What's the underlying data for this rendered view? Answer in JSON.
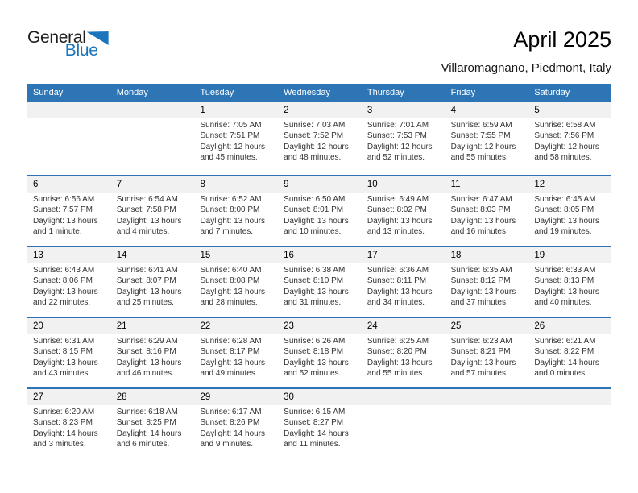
{
  "logo": {
    "part1": "General",
    "part2": "Blue"
  },
  "header": {
    "title": "April 2025",
    "subtitle": "Villaromagnano, Piedmont, Italy"
  },
  "colors": {
    "header_bg": "#2e75b6",
    "week_line": "#2e74b5",
    "band_bg": "#f1f1f1",
    "logo_blue": "#1b75bc"
  },
  "day_headers": [
    "Sunday",
    "Monday",
    "Tuesday",
    "Wednesday",
    "Thursday",
    "Friday",
    "Saturday"
  ],
  "weeks": [
    [
      {
        "day": "",
        "lines": []
      },
      {
        "day": "",
        "lines": []
      },
      {
        "day": "1",
        "lines": [
          "Sunrise: 7:05 AM",
          "Sunset: 7:51 PM",
          "Daylight: 12 hours and 45 minutes."
        ]
      },
      {
        "day": "2",
        "lines": [
          "Sunrise: 7:03 AM",
          "Sunset: 7:52 PM",
          "Daylight: 12 hours and 48 minutes."
        ]
      },
      {
        "day": "3",
        "lines": [
          "Sunrise: 7:01 AM",
          "Sunset: 7:53 PM",
          "Daylight: 12 hours and 52 minutes."
        ]
      },
      {
        "day": "4",
        "lines": [
          "Sunrise: 6:59 AM",
          "Sunset: 7:55 PM",
          "Daylight: 12 hours and 55 minutes."
        ]
      },
      {
        "day": "5",
        "lines": [
          "Sunrise: 6:58 AM",
          "Sunset: 7:56 PM",
          "Daylight: 12 hours and 58 minutes."
        ]
      }
    ],
    [
      {
        "day": "6",
        "lines": [
          "Sunrise: 6:56 AM",
          "Sunset: 7:57 PM",
          "Daylight: 13 hours and 1 minute."
        ]
      },
      {
        "day": "7",
        "lines": [
          "Sunrise: 6:54 AM",
          "Sunset: 7:58 PM",
          "Daylight: 13 hours and 4 minutes."
        ]
      },
      {
        "day": "8",
        "lines": [
          "Sunrise: 6:52 AM",
          "Sunset: 8:00 PM",
          "Daylight: 13 hours and 7 minutes."
        ]
      },
      {
        "day": "9",
        "lines": [
          "Sunrise: 6:50 AM",
          "Sunset: 8:01 PM",
          "Daylight: 13 hours and 10 minutes."
        ]
      },
      {
        "day": "10",
        "lines": [
          "Sunrise: 6:49 AM",
          "Sunset: 8:02 PM",
          "Daylight: 13 hours and 13 minutes."
        ]
      },
      {
        "day": "11",
        "lines": [
          "Sunrise: 6:47 AM",
          "Sunset: 8:03 PM",
          "Daylight: 13 hours and 16 minutes."
        ]
      },
      {
        "day": "12",
        "lines": [
          "Sunrise: 6:45 AM",
          "Sunset: 8:05 PM",
          "Daylight: 13 hours and 19 minutes."
        ]
      }
    ],
    [
      {
        "day": "13",
        "lines": [
          "Sunrise: 6:43 AM",
          "Sunset: 8:06 PM",
          "Daylight: 13 hours and 22 minutes."
        ]
      },
      {
        "day": "14",
        "lines": [
          "Sunrise: 6:41 AM",
          "Sunset: 8:07 PM",
          "Daylight: 13 hours and 25 minutes."
        ]
      },
      {
        "day": "15",
        "lines": [
          "Sunrise: 6:40 AM",
          "Sunset: 8:08 PM",
          "Daylight: 13 hours and 28 minutes."
        ]
      },
      {
        "day": "16",
        "lines": [
          "Sunrise: 6:38 AM",
          "Sunset: 8:10 PM",
          "Daylight: 13 hours and 31 minutes."
        ]
      },
      {
        "day": "17",
        "lines": [
          "Sunrise: 6:36 AM",
          "Sunset: 8:11 PM",
          "Daylight: 13 hours and 34 minutes."
        ]
      },
      {
        "day": "18",
        "lines": [
          "Sunrise: 6:35 AM",
          "Sunset: 8:12 PM",
          "Daylight: 13 hours and 37 minutes."
        ]
      },
      {
        "day": "19",
        "lines": [
          "Sunrise: 6:33 AM",
          "Sunset: 8:13 PM",
          "Daylight: 13 hours and 40 minutes."
        ]
      }
    ],
    [
      {
        "day": "20",
        "lines": [
          "Sunrise: 6:31 AM",
          "Sunset: 8:15 PM",
          "Daylight: 13 hours and 43 minutes."
        ]
      },
      {
        "day": "21",
        "lines": [
          "Sunrise: 6:29 AM",
          "Sunset: 8:16 PM",
          "Daylight: 13 hours and 46 minutes."
        ]
      },
      {
        "day": "22",
        "lines": [
          "Sunrise: 6:28 AM",
          "Sunset: 8:17 PM",
          "Daylight: 13 hours and 49 minutes."
        ]
      },
      {
        "day": "23",
        "lines": [
          "Sunrise: 6:26 AM",
          "Sunset: 8:18 PM",
          "Daylight: 13 hours and 52 minutes."
        ]
      },
      {
        "day": "24",
        "lines": [
          "Sunrise: 6:25 AM",
          "Sunset: 8:20 PM",
          "Daylight: 13 hours and 55 minutes."
        ]
      },
      {
        "day": "25",
        "lines": [
          "Sunrise: 6:23 AM",
          "Sunset: 8:21 PM",
          "Daylight: 13 hours and 57 minutes."
        ]
      },
      {
        "day": "26",
        "lines": [
          "Sunrise: 6:21 AM",
          "Sunset: 8:22 PM",
          "Daylight: 14 hours and 0 minutes."
        ]
      }
    ],
    [
      {
        "day": "27",
        "lines": [
          "Sunrise: 6:20 AM",
          "Sunset: 8:23 PM",
          "Daylight: 14 hours and 3 minutes."
        ]
      },
      {
        "day": "28",
        "lines": [
          "Sunrise: 6:18 AM",
          "Sunset: 8:25 PM",
          "Daylight: 14 hours and 6 minutes."
        ]
      },
      {
        "day": "29",
        "lines": [
          "Sunrise: 6:17 AM",
          "Sunset: 8:26 PM",
          "Daylight: 14 hours and 9 minutes."
        ]
      },
      {
        "day": "30",
        "lines": [
          "Sunrise: 6:15 AM",
          "Sunset: 8:27 PM",
          "Daylight: 14 hours and 11 minutes."
        ]
      },
      {
        "day": "",
        "lines": []
      },
      {
        "day": "",
        "lines": []
      },
      {
        "day": "",
        "lines": []
      }
    ]
  ]
}
